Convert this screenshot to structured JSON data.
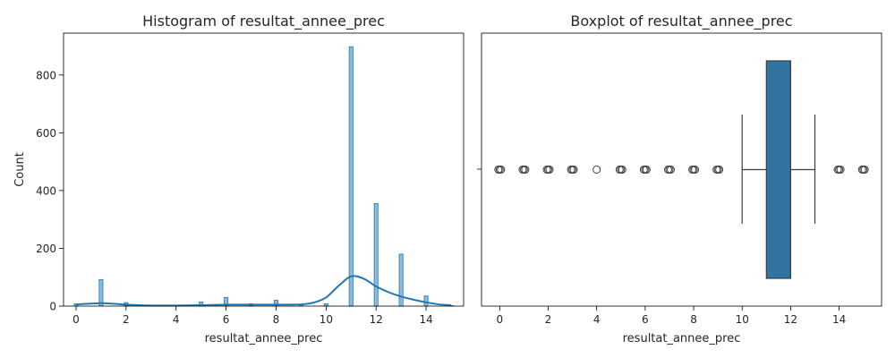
{
  "chart_data": [
    {
      "type": "histogram",
      "title": "Histogram of resultat_annee_prec",
      "xlabel": "resultat_annee_prec",
      "ylabel": "Count",
      "xlim": [
        -0.5,
        15.5
      ],
      "ylim": [
        0,
        945
      ],
      "xticks": [
        0,
        2,
        4,
        6,
        8,
        10,
        12,
        14
      ],
      "yticks": [
        0,
        200,
        400,
        600,
        800
      ],
      "bins": [
        {
          "x": 0,
          "count": 8
        },
        {
          "x": 1,
          "count": 92
        },
        {
          "x": 2,
          "count": 12
        },
        {
          "x": 3,
          "count": 3
        },
        {
          "x": 4,
          "count": 1
        },
        {
          "x": 5,
          "count": 14
        },
        {
          "x": 6,
          "count": 30
        },
        {
          "x": 7,
          "count": 8
        },
        {
          "x": 8,
          "count": 20
        },
        {
          "x": 9,
          "count": 4
        },
        {
          "x": 10,
          "count": 8
        },
        {
          "x": 11,
          "count": 898
        },
        {
          "x": 12,
          "count": 355
        },
        {
          "x": 13,
          "count": 180
        },
        {
          "x": 14,
          "count": 35
        },
        {
          "x": 15,
          "count": 2
        }
      ],
      "kde": {
        "x": [
          0,
          0.5,
          1,
          1.5,
          2,
          3,
          4,
          5,
          6,
          7,
          8,
          9,
          9.5,
          10,
          10.5,
          11,
          11.5,
          12,
          12.5,
          13,
          13.5,
          14,
          14.5,
          15
        ],
        "y": [
          6,
          8,
          10,
          8,
          5,
          2,
          2,
          3,
          5,
          5,
          5,
          6,
          12,
          30,
          70,
          103,
          95,
          68,
          48,
          33,
          22,
          13,
          6,
          3
        ]
      },
      "colors": {
        "bar": "#1f77b4",
        "kde": "#1f77b4"
      }
    },
    {
      "type": "boxplot",
      "title": "Boxplot of resultat_annee_prec",
      "xlabel": "resultat_annee_prec",
      "xlim": [
        -0.75,
        15.75
      ],
      "xticks": [
        0,
        2,
        4,
        6,
        8,
        10,
        12,
        14
      ],
      "box": {
        "q1": 11,
        "median": 12,
        "q3": 12,
        "whisker_low": 10,
        "whisker_high": 13
      },
      "outliers": [
        0,
        1,
        2,
        3,
        4,
        5,
        6,
        7,
        8,
        9,
        14,
        15
      ],
      "colors": {
        "box": "#3274a1"
      }
    }
  ]
}
